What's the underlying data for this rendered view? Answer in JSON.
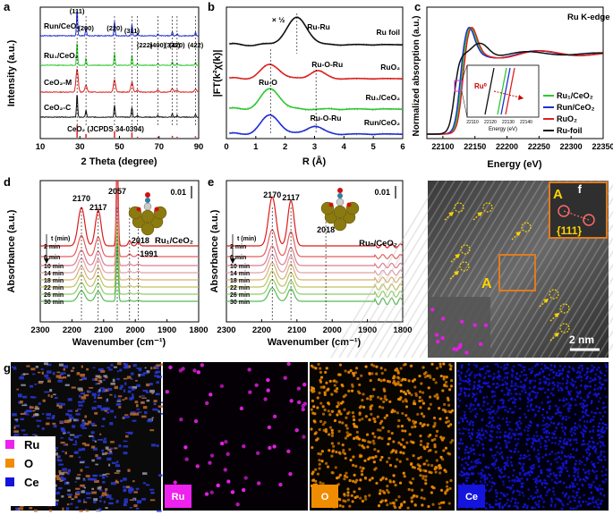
{
  "chart_data": [
    {
      "panel": "a",
      "type": "line",
      "xlabel": "2 Theta (degree)",
      "ylabel": "Intensity (a.u.)",
      "xlim": [
        10,
        90
      ],
      "xticks": [
        10,
        30,
        50,
        70,
        90
      ],
      "series": [
        {
          "name": "Ru_n/CeO2",
          "label": "Run/CeO₂",
          "color": "#1f2fd6"
        },
        {
          "name": "Ru1/CeO2",
          "label": "Ru₁/CeO₂",
          "color": "#2ec92e"
        },
        {
          "name": "CeO2-M",
          "label": "CeO₂-M",
          "color": "#e0201e"
        },
        {
          "name": "CeO2-C",
          "label": "CeO₂-C",
          "color": "#111111"
        }
      ],
      "peaks": [
        28.6,
        33.1,
        47.5,
        56.3,
        59.1,
        69.4,
        76.7,
        79.1,
        88.4
      ],
      "peak_labels": [
        "(111)",
        "(200)",
        "(220)",
        "(311)",
        "(222)",
        "(400)",
        "(331)",
        "(420)",
        "(422)"
      ],
      "reference": {
        "label": "CeO₂ (JCPDS 34-0394)",
        "color": "#e0201e",
        "intensities": [
          100,
          30,
          52,
          42,
          8,
          8,
          15,
          8,
          12
        ]
      }
    },
    {
      "panel": "b",
      "type": "line",
      "xlabel": "R (Å)",
      "ylabel": "|FT(k²χ(k)|",
      "xlim": [
        0,
        6
      ],
      "xticks": [
        0,
        1,
        2,
        3,
        4,
        5,
        6
      ],
      "series": [
        {
          "name": "Ru foil",
          "label": "Ru foil",
          "color": "#111111",
          "peaks": [
            [
              2.4,
              1.0
            ]
          ],
          "annotation": "Ru-Ru"
        },
        {
          "name": "RuO2",
          "label": "RuO₂",
          "color": "#e0201e",
          "peaks": [
            [
              1.5,
              0.6
            ],
            [
              3.1,
              0.35
            ]
          ],
          "annotation": "Ru-O"
        },
        {
          "name": "Ru1/CeO2",
          "label": "Ru₁/CeO₂",
          "color": "#2ec92e",
          "peaks": [
            [
              1.5,
              0.75
            ]
          ]
        },
        {
          "name": "Run/CeO2",
          "label": "Run/CeO₂",
          "color": "#1f2fd6",
          "peaks": [
            [
              1.5,
              0.7
            ],
            [
              3.0,
              0.3
            ]
          ],
          "annotation": "Ru-O-Ru"
        }
      ],
      "annotations": [
        "× ½",
        "Ru-Ru",
        "Ru-O",
        "Ru-O-Ru",
        "Ru-O-Ru"
      ]
    },
    {
      "panel": "c",
      "type": "line",
      "title": "Ru K-edge",
      "xlabel": "Energy (eV)",
      "ylabel": "Normalized absorption (a.u.)",
      "xlim": [
        22075,
        22350
      ],
      "xticks": [
        22100,
        22150,
        22200,
        22250,
        22300,
        22350
      ],
      "inset": {
        "xlabel": "Energy (eV)",
        "xticks": [
          22110,
          22120,
          22130,
          22140
        ],
        "label": "Ru⁰"
      },
      "series": [
        {
          "name": "Ru1/CeO2",
          "label": "Ru₁/CeO₂",
          "color": "#2ec92e"
        },
        {
          "name": "Run/CeO2",
          "label": "Run/CeO₂",
          "color": "#1f2fd6"
        },
        {
          "name": "RuO2",
          "label": "RuO₂",
          "color": "#e0201e"
        },
        {
          "name": "Ru-foil",
          "label": "Ru-foil",
          "color": "#111111"
        }
      ]
    },
    {
      "panel": "d",
      "type": "line",
      "xlabel": "Wavenumber (cm⁻¹)",
      "ylabel": "Absorbance (a.u.)",
      "xlim": [
        2300,
        1800
      ],
      "xticks": [
        2300,
        2200,
        2100,
        2000,
        1900,
        1800
      ],
      "sample": "Ru₁/CeO₂",
      "scale": "0.01",
      "times": [
        "2 min",
        "6 min",
        "10 min",
        "14 min",
        "18 min",
        "22 min",
        "26 min",
        "30 min"
      ],
      "time_axis_label": "t (min)",
      "peak_positions": [
        2170,
        2117,
        2057,
        2018,
        1991
      ]
    },
    {
      "panel": "e",
      "type": "line",
      "xlabel": "Wavenumber (cm⁻¹)",
      "ylabel": "Absorbance (a.u.)",
      "xlim": [
        2300,
        1800
      ],
      "xticks": [
        2300,
        2200,
        2100,
        2000,
        1900,
        1800
      ],
      "sample": "Ruₙ/CeO₂",
      "scale": "0.01",
      "times": [
        "2 min",
        "6 min",
        "10 min",
        "14 min",
        "18 min",
        "22 min",
        "26 min",
        "30 min"
      ],
      "time_axis_label": "t (min)",
      "peak_positions": [
        2170,
        2117,
        2018
      ]
    }
  ],
  "panel_letters": [
    "a",
    "b",
    "c",
    "d",
    "e",
    "f",
    "g"
  ],
  "panel_f": {
    "fft_label": "A",
    "plane": "{111}",
    "marker": "A",
    "scale_bar": "2 nm"
  },
  "panel_g": {
    "legend": [
      {
        "label": "Ru",
        "color": "#ee22ee"
      },
      {
        "label": "O",
        "color": "#f08c00"
      },
      {
        "label": "Ce",
        "color": "#1414dc"
      }
    ],
    "maps": [
      {
        "label": "Ru",
        "color": "#ee22ee"
      },
      {
        "label": "O",
        "color": "#f08c00"
      },
      {
        "label": "Ce",
        "color": "#1414dc"
      }
    ]
  }
}
